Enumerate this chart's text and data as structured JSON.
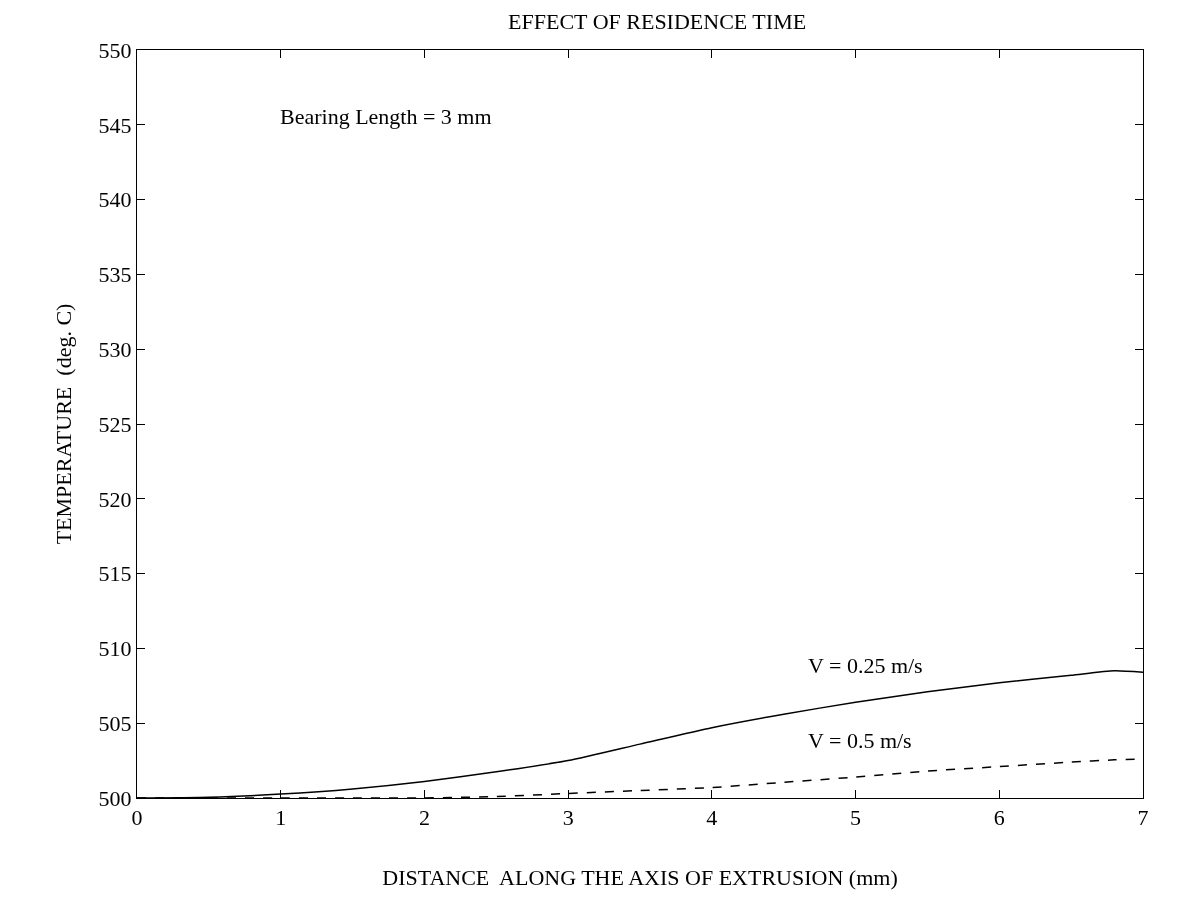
{
  "chart_data": {
    "type": "line",
    "title": "EFFECT OF RESIDENCE TIME",
    "xlabel": "DISTANCE  ALONG THE AXIS OF EXTRUSION (mm)",
    "ylabel": "TEMPERATURE  (deg. C)",
    "x": [
      0,
      0.5,
      1,
      1.5,
      2,
      2.5,
      3,
      3.5,
      4,
      4.5,
      5,
      5.5,
      6,
      6.5,
      6.8,
      7
    ],
    "series": [
      {
        "name": "V = 0.25 m/s",
        "color": "#000000",
        "line_style": "solid",
        "values": [
          500,
          500.05,
          500.26,
          500.6,
          501.1,
          501.75,
          502.5,
          503.6,
          504.7,
          505.6,
          506.4,
          507.1,
          507.7,
          508.2,
          508.5,
          508.4
        ]
      },
      {
        "name": "V = 0.5 m/s",
        "color": "#000000",
        "line_style": "dashed",
        "values": [
          500,
          500,
          500,
          500,
          500,
          500.1,
          500.3,
          500.5,
          500.7,
          501.05,
          501.4,
          501.8,
          502.1,
          502.4,
          502.55,
          502.6
        ]
      }
    ],
    "xlim": [
      0,
      7
    ],
    "xticks": [
      0,
      1,
      2,
      3,
      4,
      5,
      6,
      7
    ],
    "ylim": [
      500,
      550
    ],
    "yticks": [
      500,
      505,
      510,
      515,
      520,
      525,
      530,
      535,
      540,
      545,
      550
    ],
    "grid": false,
    "legend": false,
    "marker": "none",
    "annotations": [
      "Bearing Length = 3 mm"
    ]
  }
}
